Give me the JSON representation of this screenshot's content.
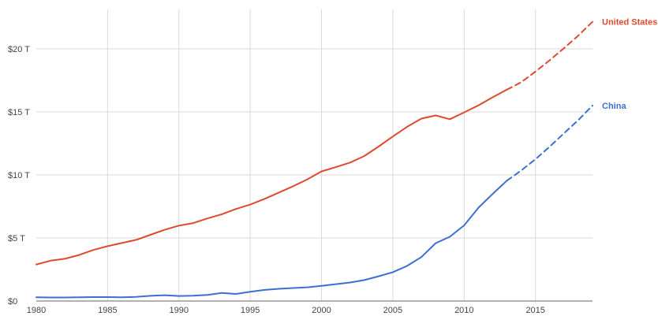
{
  "chart_data": {
    "type": "line",
    "title": "",
    "xlabel": "",
    "ylabel": "",
    "xlim": [
      1980,
      2019
    ],
    "ylim": [
      0,
      23
    ],
    "x_ticks": [
      1980,
      1985,
      1990,
      1995,
      2000,
      2005,
      2010,
      2015
    ],
    "x_tick_labels": [
      "1980",
      "1985",
      "1990",
      "1995",
      "2000",
      "2005",
      "2010",
      "2015"
    ],
    "y_ticks": [
      0,
      5,
      10,
      15,
      20
    ],
    "y_tick_labels": [
      "$0",
      "$5 T",
      "$10 T",
      "$15 T",
      "$20 T"
    ],
    "grid": true,
    "legend": "inline labels at right end of series",
    "series": [
      {
        "name": "United States",
        "color": "#dc4b2e",
        "style": "solid through 2013, dashed 2013-2019",
        "dashed_from_x": 2013,
        "x": [
          1980,
          1981,
          1982,
          1983,
          1984,
          1985,
          1986,
          1987,
          1988,
          1989,
          1990,
          1991,
          1992,
          1993,
          1994,
          1995,
          1996,
          1997,
          1998,
          1999,
          2000,
          2001,
          2002,
          2003,
          2004,
          2005,
          2006,
          2007,
          2008,
          2009,
          2010,
          2011,
          2012,
          2013,
          2014,
          2015,
          2016,
          2017,
          2018,
          2019
        ],
        "values": [
          2.9,
          3.2,
          3.35,
          3.65,
          4.05,
          4.35,
          4.6,
          4.85,
          5.25,
          5.65,
          5.98,
          6.18,
          6.55,
          6.88,
          7.3,
          7.65,
          8.1,
          8.6,
          9.1,
          9.65,
          10.28,
          10.62,
          10.98,
          11.5,
          12.25,
          13.05,
          13.82,
          14.47,
          14.72,
          14.42,
          14.96,
          15.52,
          16.16,
          16.76,
          17.35,
          18.2,
          19.1,
          20.05,
          21.05,
          22.15
        ]
      },
      {
        "name": "China",
        "color": "#3c6fcf",
        "style": "solid through 2013, dashed 2013-2019",
        "dashed_from_x": 2013,
        "x": [
          1980,
          1981,
          1982,
          1983,
          1984,
          1985,
          1986,
          1987,
          1988,
          1989,
          1990,
          1991,
          1992,
          1993,
          1994,
          1995,
          1996,
          1997,
          1998,
          1999,
          2000,
          2001,
          2002,
          2003,
          2004,
          2005,
          2006,
          2007,
          2008,
          2009,
          2010,
          2011,
          2012,
          2013,
          2014,
          2015,
          2016,
          2017,
          2018,
          2019
        ],
        "values": [
          0.3,
          0.28,
          0.28,
          0.3,
          0.31,
          0.31,
          0.3,
          0.33,
          0.41,
          0.46,
          0.4,
          0.42,
          0.49,
          0.64,
          0.56,
          0.74,
          0.88,
          0.97,
          1.03,
          1.09,
          1.2,
          1.34,
          1.47,
          1.66,
          1.96,
          2.29,
          2.79,
          3.49,
          4.59,
          5.1,
          6.0,
          7.4,
          8.5,
          9.55,
          10.35,
          11.25,
          12.25,
          13.3,
          14.35,
          15.5
        ]
      }
    ]
  }
}
